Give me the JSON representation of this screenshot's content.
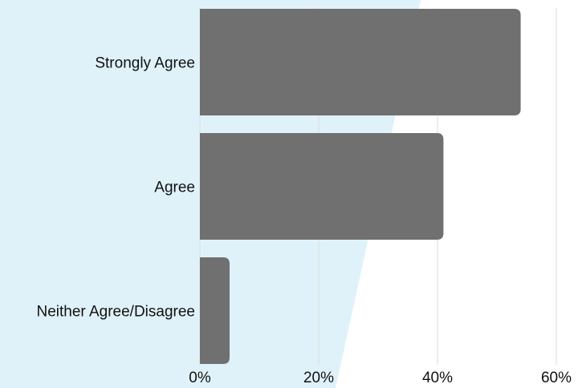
{
  "chart_data": {
    "type": "bar",
    "orientation": "horizontal",
    "categories": [
      "Strongly Agree",
      "Agree",
      "Neither Agree/Disagree"
    ],
    "values": [
      54,
      41,
      5
    ],
    "unit": "%",
    "xlim": [
      0,
      60
    ],
    "xticks": [
      "0%",
      "20%",
      "40%",
      "60%"
    ],
    "grid": "vertical",
    "colors": {
      "bar": "#707070",
      "grid": "#dddddd",
      "background_accent": "#dff2f9"
    }
  }
}
